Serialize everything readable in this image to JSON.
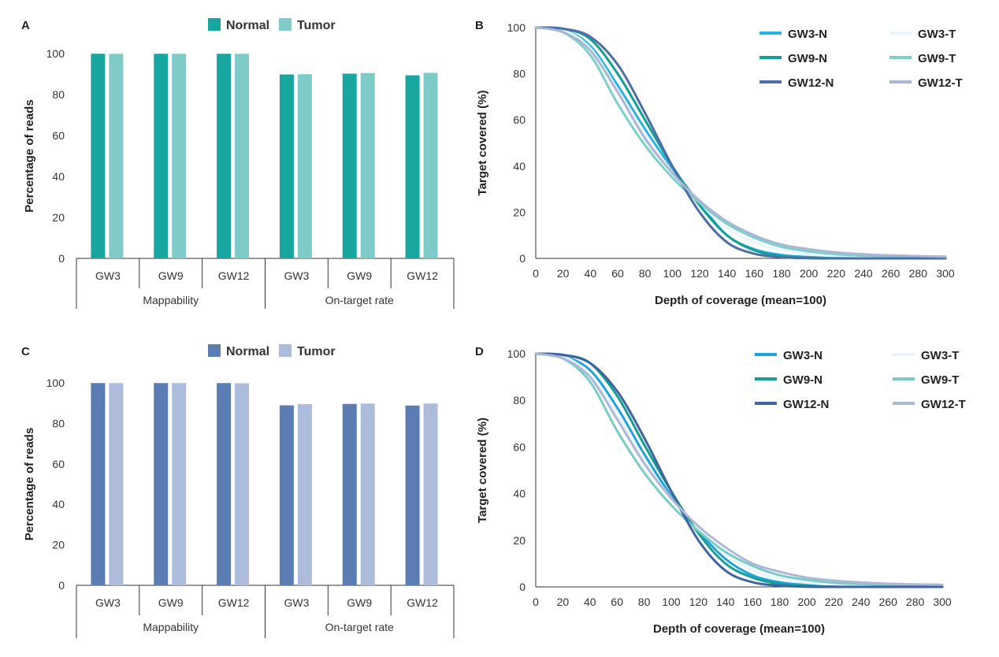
{
  "figure": {
    "panels": [
      "A",
      "B",
      "C",
      "D"
    ]
  },
  "chart_data": [
    {
      "panel": "A",
      "type": "bar",
      "ylabel": "Percentage of reads",
      "ylim": [
        0,
        100
      ],
      "yticks": [
        0,
        20,
        40,
        60,
        80,
        100
      ],
      "categories": [
        "GW3",
        "GW9",
        "GW12",
        "GW3",
        "GW9",
        "GW12"
      ],
      "groups": [
        {
          "label": "Mappability",
          "categories": [
            0,
            1,
            2
          ]
        },
        {
          "label": "On-target rate",
          "categories": [
            3,
            4,
            5
          ]
        }
      ],
      "legend_position": "top",
      "series": [
        {
          "name": "Normal",
          "color": "#17a7a0",
          "values": [
            99.9,
            99.9,
            99.9,
            89.8,
            90.2,
            89.4
          ]
        },
        {
          "name": "Tumor",
          "color": "#7ecbc8",
          "values": [
            99.9,
            99.9,
            99.9,
            89.9,
            90.5,
            90.6
          ]
        }
      ]
    },
    {
      "panel": "B",
      "type": "line",
      "xlabel": "Depth of coverage (mean=100)",
      "ylabel": "Target covered (%)",
      "xlim": [
        0,
        300
      ],
      "ylim": [
        0,
        100
      ],
      "xticks": [
        0,
        20,
        40,
        60,
        80,
        100,
        120,
        140,
        160,
        180,
        200,
        220,
        240,
        260,
        280,
        300
      ],
      "yticks": [
        0,
        20,
        40,
        60,
        80,
        100
      ],
      "legend_position": "top-right",
      "x": [
        0,
        20,
        40,
        60,
        80,
        100,
        120,
        140,
        160,
        180,
        200,
        220,
        240,
        260,
        280,
        300
      ],
      "series": [
        {
          "name": "GW3-N",
          "color": "#29b2e4",
          "values": [
            100,
            99,
            92,
            75,
            56,
            39,
            24,
            10,
            4,
            1.5,
            0.6,
            0.3,
            0.2,
            0.1,
            0.1,
            0.1
          ]
        },
        {
          "name": "GW3-T",
          "color": "#eaf6fb",
          "values": [
            100,
            99,
            91,
            73,
            53,
            37,
            24,
            13,
            7,
            3.5,
            1.8,
            1.0,
            0.6,
            0.4,
            0.3,
            0.2
          ]
        },
        {
          "name": "GW9-N",
          "color": "#139f96",
          "values": [
            100,
            99.5,
            95,
            80,
            60,
            40,
            23,
            10,
            3.5,
            1.0,
            0.3,
            0.1,
            0,
            0,
            0,
            0
          ]
        },
        {
          "name": "GW9-T",
          "color": "#7ccfcb",
          "values": [
            100,
            98,
            88,
            67,
            49,
            35,
            24,
            15,
            9,
            5,
            3,
            1.8,
            1.2,
            0.8,
            0.5,
            0.3
          ]
        },
        {
          "name": "GW12-N",
          "color": "#4e6fa6",
          "values": [
            100,
            99.5,
            96,
            84,
            63,
            40,
            20,
            7,
            2,
            0.5,
            0.1,
            0,
            0,
            0,
            0,
            0
          ]
        },
        {
          "name": "GW12-T",
          "color": "#a9b7d6",
          "values": [
            100,
            98,
            90,
            72,
            52,
            37,
            25,
            16,
            10,
            6,
            4,
            2.6,
            1.8,
            1.3,
            1.0,
            0.8
          ]
        }
      ]
    },
    {
      "panel": "C",
      "type": "bar",
      "ylabel": "Percentage of reads",
      "ylim": [
        0,
        100
      ],
      "yticks": [
        0,
        20,
        40,
        60,
        80,
        100
      ],
      "categories": [
        "GW3",
        "GW9",
        "GW12",
        "GW3",
        "GW9",
        "GW12"
      ],
      "groups": [
        {
          "label": "Mappability",
          "categories": [
            0,
            1,
            2
          ]
        },
        {
          "label": "On-target rate",
          "categories": [
            3,
            4,
            5
          ]
        }
      ],
      "legend_position": "top",
      "series": [
        {
          "name": "Normal",
          "color": "#5b7db3",
          "values": [
            99.9,
            99.9,
            99.9,
            88.9,
            89.6,
            88.8
          ]
        },
        {
          "name": "Tumor",
          "color": "#adbcdb",
          "values": [
            99.9,
            99.9,
            99.8,
            89.5,
            89.8,
            89.8
          ]
        }
      ]
    },
    {
      "panel": "D",
      "type": "line",
      "xlabel": "Depth of coverage (mean=100)",
      "ylabel": "Target covered (%)",
      "xlim": [
        0,
        300
      ],
      "ylim": [
        0,
        100
      ],
      "xticks": [
        0,
        20,
        40,
        60,
        80,
        100,
        120,
        140,
        160,
        180,
        200,
        220,
        240,
        260,
        280,
        300
      ],
      "yticks": [
        0,
        20,
        40,
        60,
        80,
        100
      ],
      "legend_position": "top-right",
      "x": [
        0,
        20,
        40,
        60,
        80,
        100,
        120,
        140,
        160,
        180,
        200,
        220,
        240,
        260,
        280,
        300
      ],
      "series": [
        {
          "name": "GW3-N",
          "color": "#1ea2dc",
          "values": [
            100,
            99,
            93,
            77,
            57,
            39,
            24,
            12,
            5,
            2,
            0.8,
            0.3,
            0.2,
            0.1,
            0.1,
            0.1
          ]
        },
        {
          "name": "GW3-T",
          "color": "#e9f5fa",
          "values": [
            100,
            99,
            91,
            74,
            54,
            38,
            25,
            14,
            7,
            3.5,
            1.8,
            1.0,
            0.6,
            0.4,
            0.3,
            0.2
          ]
        },
        {
          "name": "GW9-N",
          "color": "#169e93",
          "values": [
            100,
            99.5,
            96,
            82,
            61,
            41,
            23,
            10,
            4,
            1.2,
            0.4,
            0.1,
            0,
            0,
            0,
            0
          ]
        },
        {
          "name": "GW9-T",
          "color": "#7acbc6",
          "values": [
            100,
            98,
            88,
            67,
            49,
            35,
            24,
            15,
            9,
            5,
            3,
            1.8,
            1.2,
            0.8,
            0.5,
            0.3
          ]
        },
        {
          "name": "GW12-N",
          "color": "#3f65a0",
          "values": [
            100,
            99.5,
            96,
            84,
            64,
            41,
            20,
            7,
            2,
            0.5,
            0.1,
            0,
            0,
            0,
            0,
            0
          ]
        },
        {
          "name": "GW12-T",
          "color": "#abb8d8",
          "values": [
            100,
            98,
            90,
            72,
            53,
            38,
            26,
            17,
            10,
            6.5,
            4,
            2.7,
            1.9,
            1.4,
            1.1,
            0.9
          ]
        }
      ]
    }
  ]
}
